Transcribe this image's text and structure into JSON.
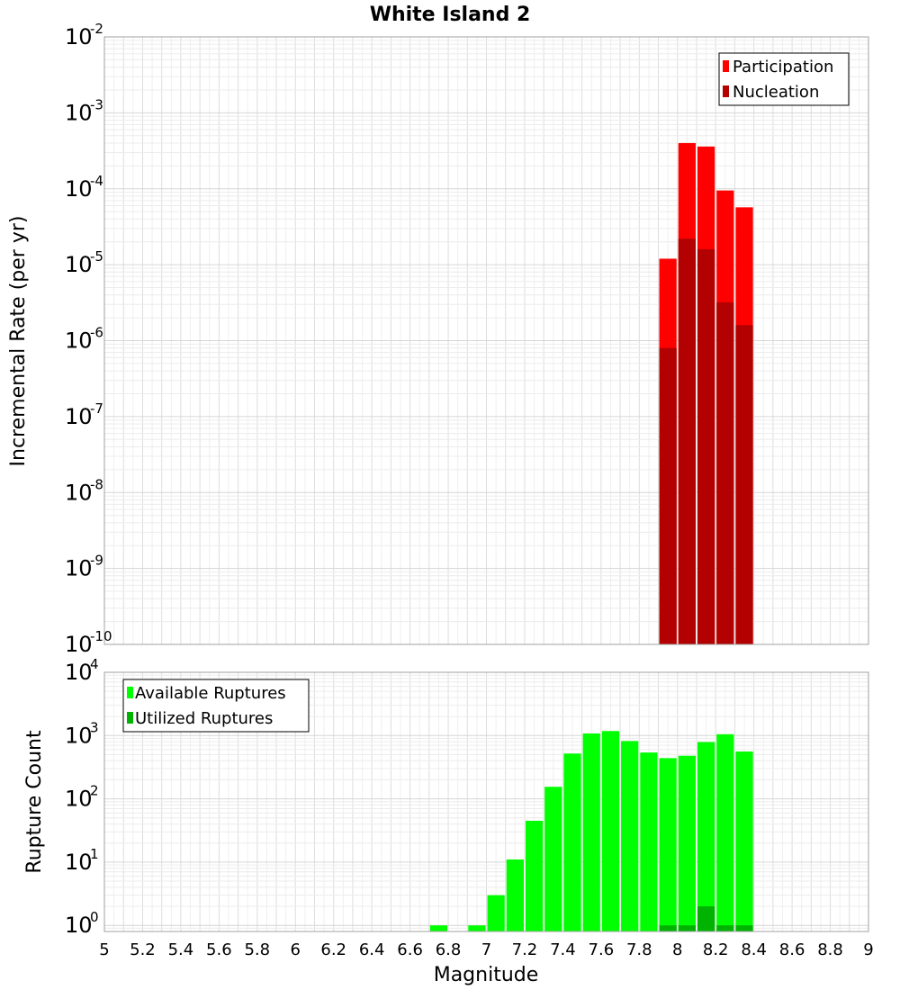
{
  "title": "White Island 2",
  "chart_data": [
    {
      "type": "bar",
      "ylabel": "Incremental Rate (per yr)",
      "yscale": "log",
      "ylim": [
        1e-10,
        0.01
      ],
      "xlim": [
        5,
        9
      ],
      "y_tick_exponents": [
        "-10",
        "-9",
        "-8",
        "-7",
        "-6",
        "-5",
        "-4",
        "-3",
        "-2"
      ],
      "legend_position": "top-right",
      "series": [
        {
          "name": "Participation",
          "color": "#ff0000",
          "x": [
            7.95,
            8.05,
            8.15,
            8.25,
            8.35
          ],
          "values": [
            1.2e-05,
            0.0004,
            0.00036,
            9.5e-05,
            5.7e-05
          ]
        },
        {
          "name": "Nucleation",
          "color": "#b30000",
          "x": [
            7.95,
            8.05,
            8.15,
            8.25,
            8.35
          ],
          "values": [
            8e-07,
            2.2e-05,
            1.6e-05,
            3.2e-06,
            1.6e-06
          ]
        }
      ]
    },
    {
      "type": "bar",
      "xlabel": "Magnitude",
      "ylabel": "Rupture Count",
      "yscale": "log",
      "ylim": [
        0.8,
        10000
      ],
      "xlim": [
        5,
        9
      ],
      "y_tick_exponents": [
        "0",
        "1",
        "2",
        "3",
        "4"
      ],
      "x_ticks": [
        "5",
        "5.2",
        "5.4",
        "5.6",
        "5.8",
        "6",
        "6.2",
        "6.4",
        "6.6",
        "6.8",
        "7",
        "7.2",
        "7.4",
        "7.6",
        "7.8",
        "8",
        "8.2",
        "8.4",
        "8.6",
        "8.8",
        "9"
      ],
      "legend_position": "top-left",
      "series": [
        {
          "name": "Available Ruptures",
          "color": "#00ff00",
          "x": [
            6.75,
            6.95,
            7.05,
            7.15,
            7.25,
            7.35,
            7.45,
            7.55,
            7.65,
            7.75,
            7.85,
            7.95,
            8.05,
            8.15,
            8.25,
            8.35
          ],
          "values": [
            1,
            1,
            3,
            11,
            45,
            155,
            520,
            1080,
            1180,
            820,
            540,
            440,
            480,
            790,
            1050,
            560
          ]
        },
        {
          "name": "Utilized Ruptures",
          "color": "#00b300",
          "x": [
            7.95,
            8.05,
            8.15,
            8.25,
            8.35
          ],
          "values": [
            1,
            1,
            2,
            1,
            1
          ]
        }
      ]
    }
  ]
}
